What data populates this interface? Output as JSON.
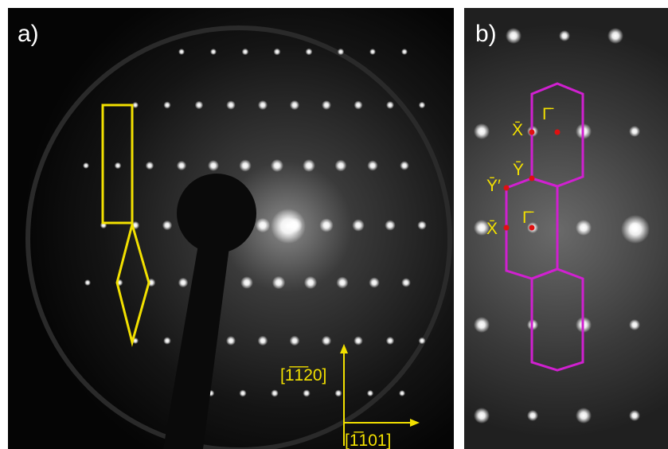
{
  "panels": [
    {
      "label": "a)",
      "directions": [
        "[1̅1̅20]",
        "[1̅101]"
      ]
    },
    {
      "label": "b)",
      "points": [
        "X̄",
        "Γ̄",
        "Ȳ",
        "Ȳ′",
        "X̄",
        "Γ̄"
      ]
    }
  ]
}
